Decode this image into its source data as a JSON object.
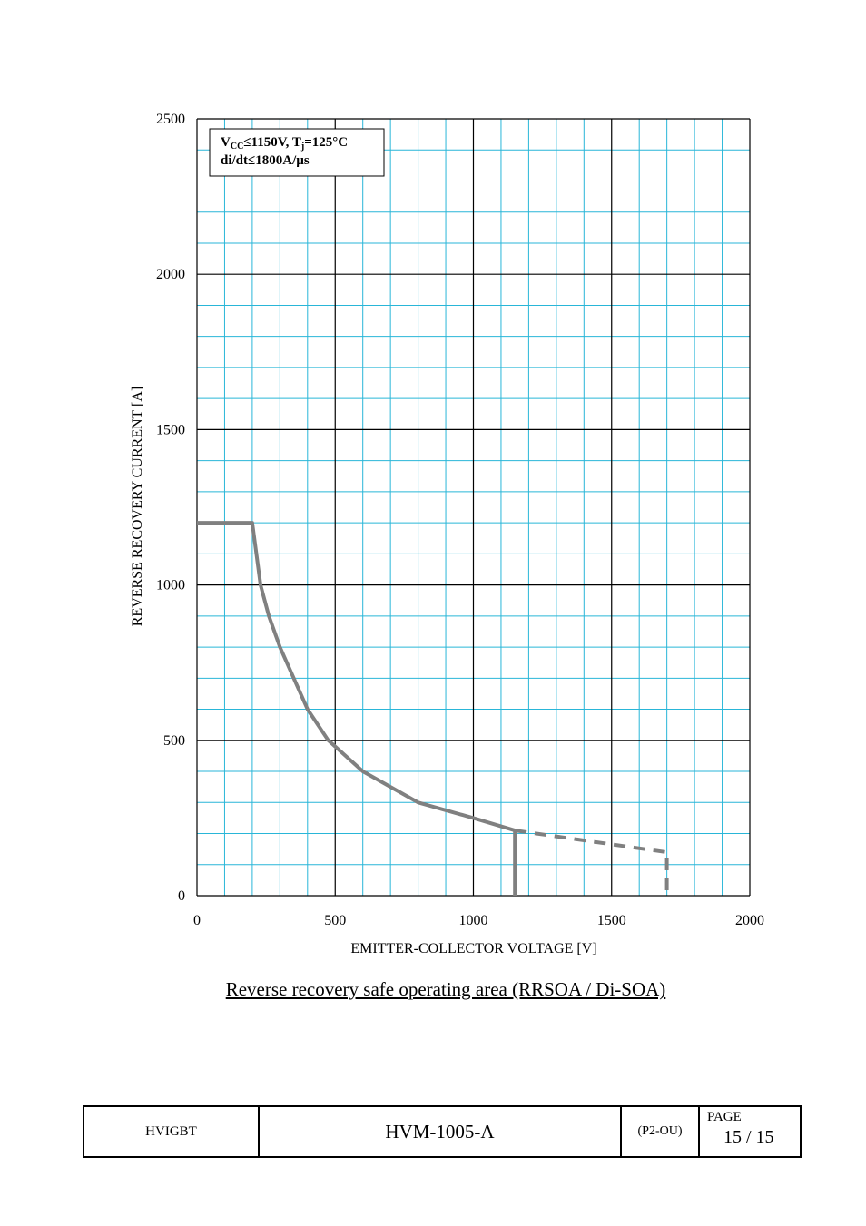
{
  "chart_data": {
    "type": "line",
    "xlabel": "EMITTER-COLLECTOR VOLTAGE [V]",
    "ylabel": "REVERSE RECOVERY CURRENT [A]",
    "xlim": [
      0,
      2000
    ],
    "ylim": [
      0,
      2500
    ],
    "x_ticks": [
      "0",
      "500",
      "1000",
      "1500",
      "2000"
    ],
    "y_ticks": [
      "0",
      "500",
      "1000",
      "1500",
      "2000",
      "2500"
    ],
    "grid": true,
    "annotation": {
      "line1_prefix": "V",
      "line1_sub1": "CC",
      "line1_mid": "≤1150V, T",
      "line1_sub2": "j",
      "line1_suffix": "=125°C",
      "line2": "di/dt≤1800A/µs",
      "placement": "top-left"
    },
    "series": [
      {
        "style": "solid",
        "color": "#808080",
        "x": [
          0,
          200,
          230,
          260,
          300,
          350,
          400,
          475,
          600,
          800,
          1000,
          1150,
          1150
        ],
        "y": [
          1200,
          1200,
          1000,
          900,
          800,
          700,
          600,
          500,
          400,
          300,
          250,
          210,
          0
        ]
      },
      {
        "style": "dashed",
        "color": "#808080",
        "x": [
          1150,
          1700,
          1700
        ],
        "y": [
          210,
          140,
          0
        ]
      }
    ],
    "grid_colors": {
      "major": "#000000",
      "minor": "#29b6d8"
    }
  },
  "caption": "Reverse recovery safe operating area (RRSOA / Di-SOA)",
  "footer": {
    "category": "HVIGBT",
    "doc_number": "HVM-1005-A",
    "code": "(P2-OU)",
    "page_label": "PAGE",
    "page_value": "15 / 15"
  }
}
